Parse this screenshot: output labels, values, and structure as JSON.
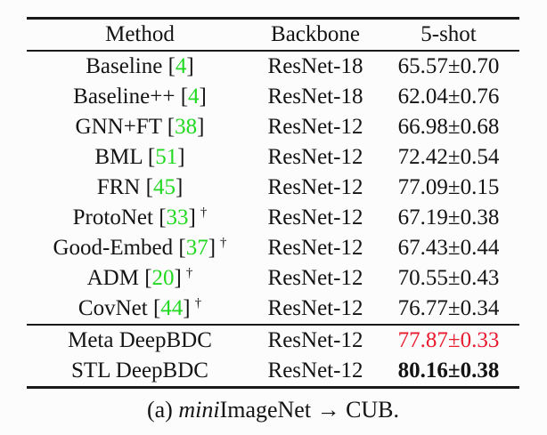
{
  "colors": {
    "citation_green": "#22d922",
    "highlight_red": "#e81a2d",
    "text": "#141414",
    "background": "#fcfcfc"
  },
  "table": {
    "columns": [
      "Method",
      "Backbone",
      "5-shot"
    ],
    "bracket_open": "[",
    "bracket_close": "]",
    "dagger_symbol": "†",
    "rows": [
      {
        "method": "Baseline",
        "cite": "4",
        "dagger": false,
        "backbone": "ResNet-18",
        "value": "65.57±0.70",
        "style": "normal"
      },
      {
        "method": "Baseline++",
        "cite": "4",
        "dagger": false,
        "backbone": "ResNet-18",
        "value": "62.04±0.76",
        "style": "normal"
      },
      {
        "method": "GNN+FT",
        "cite": "38",
        "dagger": false,
        "backbone": "ResNet-12",
        "value": "66.98±0.68",
        "style": "normal"
      },
      {
        "method": "BML",
        "cite": "51",
        "dagger": false,
        "backbone": "ResNet-12",
        "value": "72.42±0.54",
        "style": "normal"
      },
      {
        "method": "FRN",
        "cite": "45",
        "dagger": false,
        "backbone": "ResNet-12",
        "value": "77.09±0.15",
        "style": "normal"
      },
      {
        "method": "ProtoNet",
        "cite": "33",
        "dagger": true,
        "backbone": "ResNet-12",
        "value": "67.19±0.38",
        "style": "normal"
      },
      {
        "method": "Good-Embed",
        "cite": "37",
        "dagger": true,
        "backbone": "ResNet-12",
        "value": "67.43±0.44",
        "style": "normal"
      },
      {
        "method": "ADM",
        "cite": "20",
        "dagger": true,
        "backbone": "ResNet-12",
        "value": "70.55±0.43",
        "style": "normal"
      },
      {
        "method": "CovNet",
        "cite": "44",
        "dagger": true,
        "backbone": "ResNet-12",
        "value": "76.77±0.34",
        "style": "normal"
      }
    ],
    "ours_rows": [
      {
        "method": "Meta DeepBDC",
        "cite": null,
        "dagger": false,
        "backbone": "ResNet-12",
        "value": "77.87±0.33",
        "style": "red"
      },
      {
        "method": "STL DeepBDC",
        "cite": null,
        "dagger": false,
        "backbone": "ResNet-12",
        "value": "80.16±0.38",
        "style": "bold"
      }
    ]
  },
  "caption": {
    "prefix": "(a) ",
    "italic": "mini",
    "rest": "ImageNet → CUB."
  }
}
